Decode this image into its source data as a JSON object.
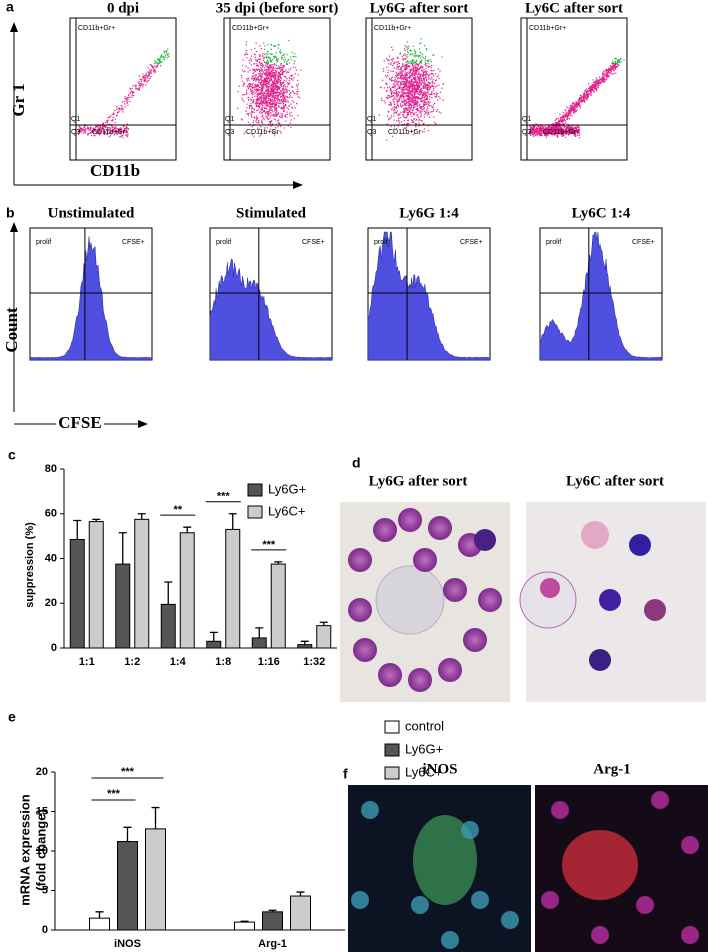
{
  "panel_a": {
    "letter": "a",
    "titles": [
      "0 dpi",
      "35 dpi (before sort)",
      "Ly6G after sort",
      "Ly6C after sort"
    ],
    "y_label": "Gr 1",
    "x_label": "CD11b",
    "gate_q1": "Q1",
    "gate_q3": "Q3",
    "gate_pos": "CD11b+Gr+",
    "gate_neg": "CD11b+Gr-"
  },
  "panel_b": {
    "letter": "b",
    "titles": [
      "Unstimulated",
      "Stimulated",
      "Ly6G 1:4",
      "Ly6C 1:4"
    ],
    "y_label": "Count",
    "x_label": "CFSE",
    "gate_left": "prolif",
    "gate_right": "CFSE+"
  },
  "panel_d": {
    "letter": "d",
    "titles": [
      "Ly6G after sort",
      "Ly6C after sort"
    ]
  },
  "panel_f": {
    "letter": "f",
    "titles": [
      "iNOS",
      "Arg-1"
    ]
  },
  "chart_data": [
    {
      "type": "bar",
      "panel": "c",
      "y_label": "suppression (%)",
      "categories": [
        "1:1",
        "1:2",
        "1:4",
        "1:8",
        "1:16",
        "1:32"
      ],
      "series": [
        {
          "name": "Ly6G+",
          "color": "#555555",
          "values": [
            48.5,
            37.5,
            19.5,
            3,
            4.5,
            1.5
          ],
          "errors": [
            8.5,
            14,
            10,
            4,
            4.5,
            1.5
          ]
        },
        {
          "name": "Ly6C+",
          "color": "#cccccc",
          "values": [
            56.5,
            57.5,
            51.5,
            53,
            37.5,
            10
          ],
          "errors": [
            1,
            2.5,
            2.5,
            7,
            1,
            1.5
          ]
        }
      ],
      "ylim": [
        0,
        80
      ],
      "yticks": [
        0,
        20,
        40,
        60,
        80
      ],
      "annotations": [
        "**",
        "***",
        "***"
      ]
    },
    {
      "type": "bar",
      "panel": "e",
      "y_label": [
        "mRNA expression",
        "(fold change)"
      ],
      "categories": [
        "iNOS",
        "Arg-1"
      ],
      "series": [
        {
          "name": "control",
          "color": "#ffffff",
          "values": [
            1.5,
            1.0
          ],
          "errors": [
            0.8,
            0.1
          ]
        },
        {
          "name": "Ly6G+",
          "color": "#555555",
          "values": [
            11.2,
            2.3
          ],
          "errors": [
            1.8,
            0.2
          ]
        },
        {
          "name": "Ly6C+",
          "color": "#cccccc",
          "values": [
            12.8,
            4.3
          ],
          "errors": [
            2.7,
            0.5
          ]
        }
      ],
      "ylim": [
        0,
        20
      ],
      "yticks": [
        0,
        5,
        10,
        15,
        20
      ],
      "annotations": [
        "***",
        "***"
      ]
    }
  ]
}
